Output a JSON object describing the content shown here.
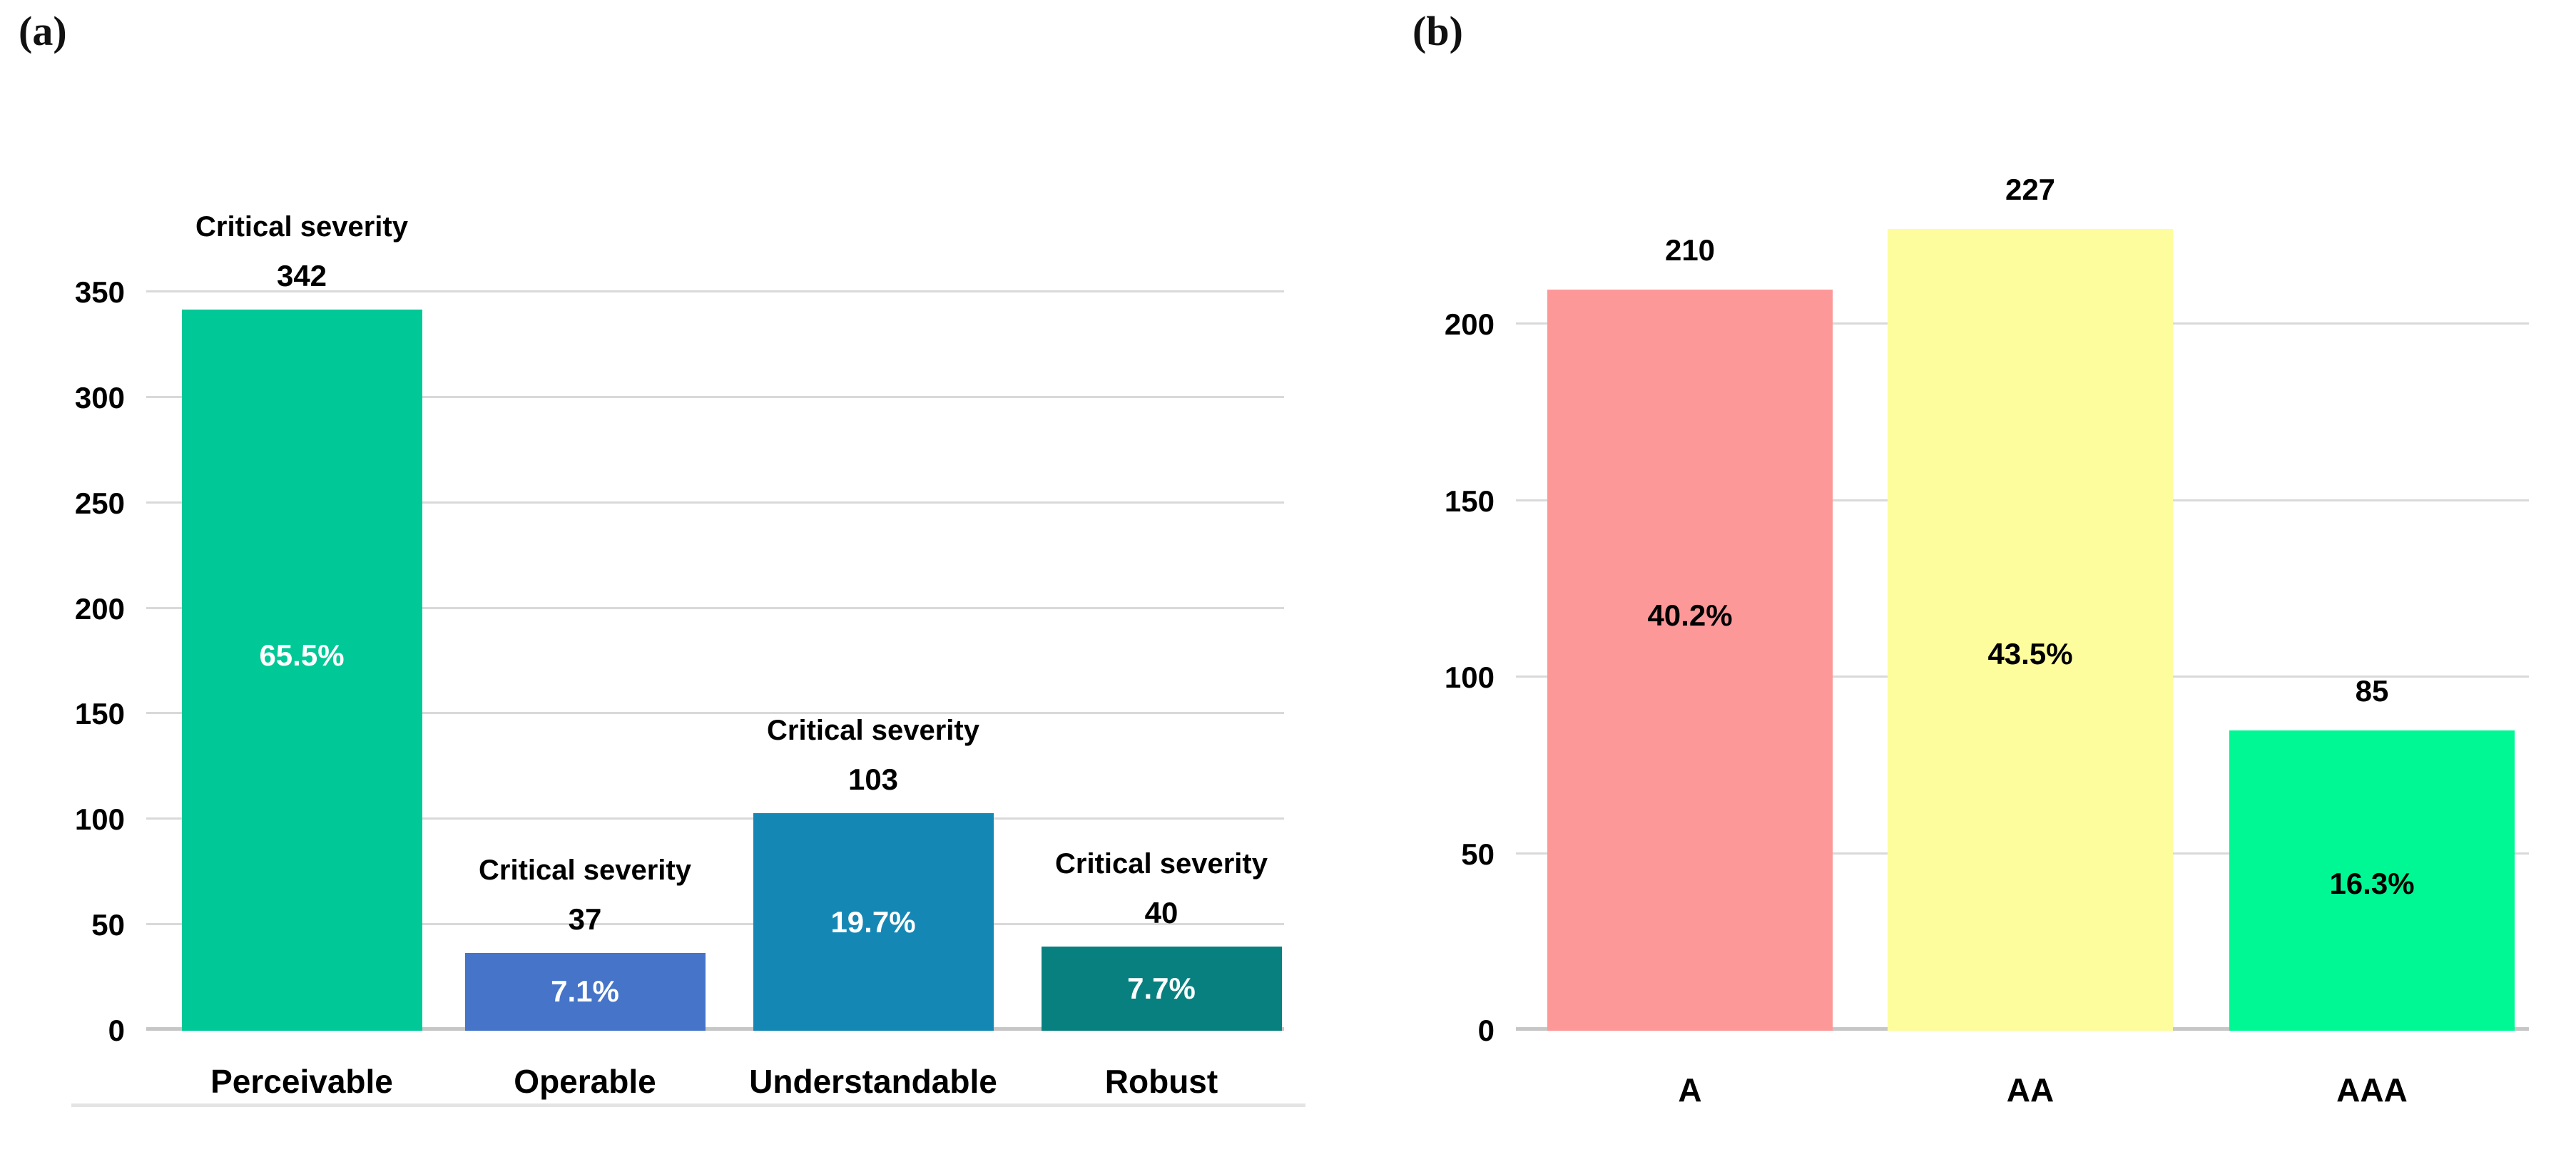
{
  "page": {
    "background": "#FFFFFF"
  },
  "panels": [
    {
      "label": "(a)"
    },
    {
      "label": "(b)"
    }
  ],
  "chart_data": [
    {
      "id": "a",
      "type": "bar",
      "panel_label": "(a)",
      "title": "",
      "xlabel": "",
      "ylabel": "",
      "categories": [
        "Perceivable",
        "Operable",
        "Understandable",
        "Robust"
      ],
      "values": [
        342,
        37,
        103,
        40
      ],
      "value_labels": [
        "342",
        "37",
        "103",
        "40"
      ],
      "above_bar_annotations": [
        "Critical severity",
        "Critical severity",
        "Critical severity",
        "Critical severity"
      ],
      "percent_labels": [
        "65.5%",
        "7.1%",
        "19.7%",
        "7.7%"
      ],
      "bar_colors": [
        "#00C896",
        "#4574C8",
        "#1487B5",
        "#088080"
      ],
      "percent_label_color": "#FFFFFF",
      "yticks": [
        0,
        50,
        100,
        150,
        200,
        250,
        300,
        350
      ],
      "ylim": [
        0,
        350
      ],
      "grid": true,
      "gridline_color": "#D9D9D9",
      "baseline_color": "#C6C6C6",
      "legend": "none"
    },
    {
      "id": "b",
      "type": "bar",
      "panel_label": "(b)",
      "title": "",
      "xlabel": "",
      "ylabel": "",
      "categories": [
        "A",
        "AA",
        "AAA"
      ],
      "values": [
        210,
        227,
        85
      ],
      "value_labels": [
        "210",
        "227",
        "85"
      ],
      "above_bar_annotations": [
        "",
        "",
        ""
      ],
      "percent_labels": [
        "40.2%",
        "43.5%",
        "16.3%"
      ],
      "bar_colors": [
        "#FD9898",
        "#FDFD9D",
        "#00F894"
      ],
      "percent_label_color": "#000000",
      "yticks": [
        0,
        50,
        100,
        150,
        200
      ],
      "ylim": [
        0,
        200
      ],
      "grid": true,
      "gridline_color": "#D9D9D9",
      "baseline_color": "#C6C6C6",
      "legend": "none"
    }
  ]
}
